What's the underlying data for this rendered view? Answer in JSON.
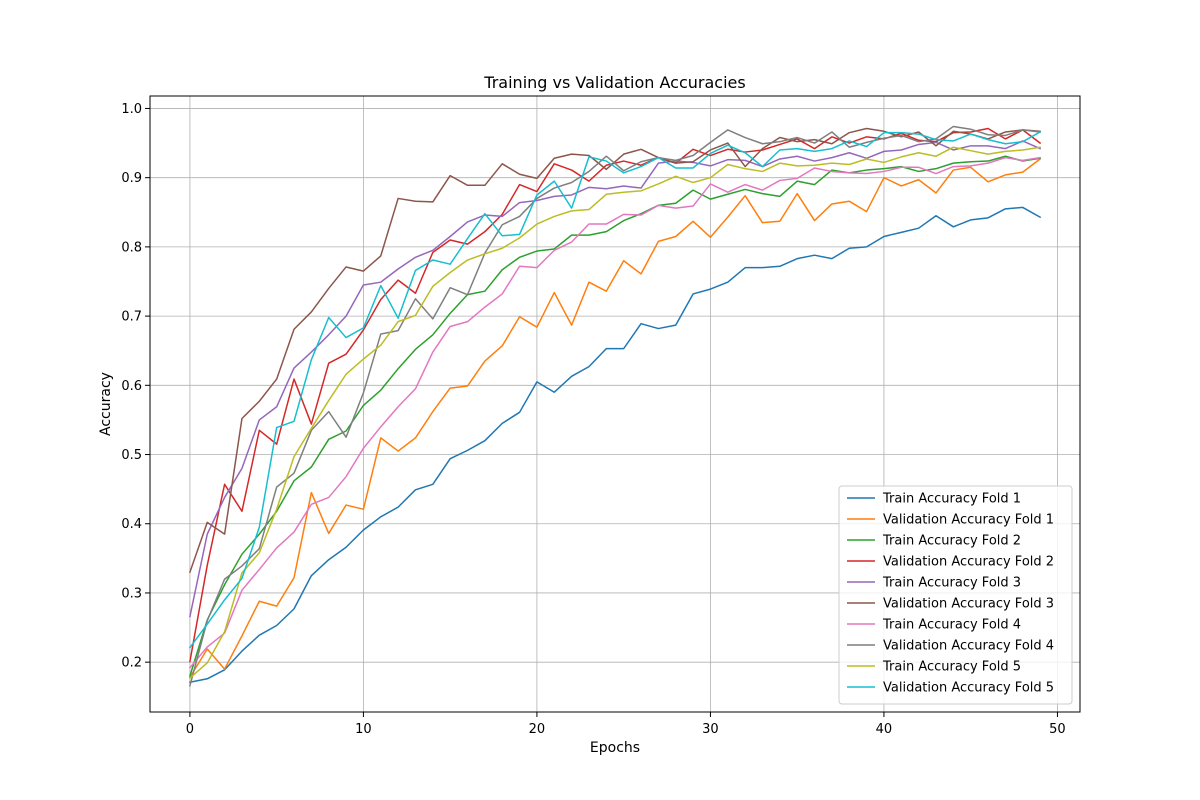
{
  "chart_data": {
    "type": "line",
    "title": "Training vs Validation Accuracies",
    "xlabel": "Epochs",
    "ylabel": "Accuracy",
    "xlim": [
      -2.3,
      51.3
    ],
    "ylim": [
      0.128,
      1.018
    ],
    "xticks": [
      0,
      10,
      20,
      30,
      40,
      50
    ],
    "yticks": [
      0.2,
      0.3,
      0.4,
      0.5,
      0.6,
      0.7,
      0.8,
      0.9,
      1.0
    ],
    "grid": true,
    "legend_position": "lower-right",
    "x": [
      0,
      1,
      2,
      3,
      4,
      5,
      6,
      7,
      8,
      9,
      10,
      11,
      12,
      13,
      14,
      15,
      16,
      17,
      18,
      19,
      20,
      21,
      22,
      23,
      24,
      25,
      26,
      27,
      28,
      29,
      30,
      31,
      32,
      33,
      34,
      35,
      36,
      37,
      38,
      39,
      40,
      41,
      42,
      43,
      44,
      45,
      46,
      47,
      48,
      49
    ],
    "series": [
      {
        "name": "Train Accuracy Fold 1",
        "color": "#1f77b4",
        "values": [
          0.171,
          0.176,
          0.189,
          0.216,
          0.239,
          0.253,
          0.277,
          0.325,
          0.348,
          0.366,
          0.391,
          0.41,
          0.424,
          0.449,
          0.457,
          0.494,
          0.506,
          0.52,
          0.545,
          0.561,
          0.605,
          0.59,
          0.613,
          0.627,
          0.653,
          0.653,
          0.689,
          0.682,
          0.687,
          0.732,
          0.739,
          0.749,
          0.77,
          0.77,
          0.772,
          0.783,
          0.788,
          0.783,
          0.798,
          0.8,
          0.815,
          0.821,
          0.827,
          0.845,
          0.829,
          0.839,
          0.842,
          0.855,
          0.857,
          0.843
        ]
      },
      {
        "name": "Validation Accuracy Fold 1",
        "color": "#ff7f0e",
        "values": [
          0.178,
          0.219,
          0.19,
          0.238,
          0.288,
          0.281,
          0.322,
          0.445,
          0.386,
          0.427,
          0.421,
          0.524,
          0.505,
          0.524,
          0.562,
          0.596,
          0.599,
          0.635,
          0.657,
          0.699,
          0.684,
          0.734,
          0.687,
          0.749,
          0.736,
          0.78,
          0.761,
          0.808,
          0.815,
          0.837,
          0.814,
          0.843,
          0.874,
          0.835,
          0.837,
          0.877,
          0.838,
          0.862,
          0.866,
          0.851,
          0.9,
          0.888,
          0.897,
          0.878,
          0.911,
          0.915,
          0.894,
          0.904,
          0.908,
          0.927
        ]
      },
      {
        "name": "Train Accuracy Fold 2",
        "color": "#2ca02c",
        "values": [
          0.18,
          0.261,
          0.312,
          0.356,
          0.385,
          0.418,
          0.462,
          0.482,
          0.522,
          0.534,
          0.571,
          0.593,
          0.624,
          0.652,
          0.673,
          0.704,
          0.731,
          0.736,
          0.767,
          0.785,
          0.794,
          0.797,
          0.817,
          0.817,
          0.822,
          0.838,
          0.848,
          0.86,
          0.863,
          0.882,
          0.869,
          0.876,
          0.883,
          0.877,
          0.873,
          0.895,
          0.89,
          0.911,
          0.907,
          0.911,
          0.913,
          0.916,
          0.909,
          0.913,
          0.921,
          0.923,
          0.924,
          0.931,
          0.924,
          0.928
        ]
      },
      {
        "name": "Validation Accuracy Fold 2",
        "color": "#d62728",
        "values": [
          0.201,
          0.34,
          0.457,
          0.418,
          0.535,
          0.515,
          0.609,
          0.544,
          0.632,
          0.645,
          0.68,
          0.724,
          0.752,
          0.733,
          0.792,
          0.81,
          0.804,
          0.822,
          0.847,
          0.89,
          0.88,
          0.92,
          0.911,
          0.895,
          0.918,
          0.924,
          0.918,
          0.929,
          0.921,
          0.941,
          0.932,
          0.941,
          0.937,
          0.94,
          0.948,
          0.956,
          0.942,
          0.959,
          0.95,
          0.959,
          0.956,
          0.964,
          0.954,
          0.952,
          0.965,
          0.966,
          0.971,
          0.956,
          0.969,
          0.95
        ]
      },
      {
        "name": "Train Accuracy Fold 3",
        "color": "#9467bd",
        "values": [
          0.266,
          0.385,
          0.438,
          0.48,
          0.55,
          0.569,
          0.625,
          0.648,
          0.673,
          0.7,
          0.745,
          0.749,
          0.768,
          0.785,
          0.795,
          0.815,
          0.836,
          0.846,
          0.844,
          0.864,
          0.867,
          0.873,
          0.875,
          0.886,
          0.884,
          0.888,
          0.885,
          0.921,
          0.924,
          0.922,
          0.917,
          0.926,
          0.925,
          0.916,
          0.927,
          0.931,
          0.924,
          0.929,
          0.936,
          0.928,
          0.938,
          0.94,
          0.948,
          0.951,
          0.94,
          0.946,
          0.946,
          0.942,
          0.953,
          0.942
        ]
      },
      {
        "name": "Validation Accuracy Fold 3",
        "color": "#8c564b",
        "values": [
          0.33,
          0.402,
          0.385,
          0.552,
          0.577,
          0.609,
          0.681,
          0.706,
          0.74,
          0.771,
          0.765,
          0.787,
          0.87,
          0.866,
          0.865,
          0.903,
          0.889,
          0.889,
          0.92,
          0.905,
          0.899,
          0.928,
          0.934,
          0.932,
          0.912,
          0.934,
          0.941,
          0.929,
          0.921,
          0.923,
          0.94,
          0.95,
          0.916,
          0.942,
          0.958,
          0.952,
          0.955,
          0.949,
          0.965,
          0.971,
          0.967,
          0.959,
          0.966,
          0.946,
          0.967,
          0.963,
          0.956,
          0.966,
          0.969,
          0.967
        ]
      },
      {
        "name": "Train Accuracy Fold 4",
        "color": "#e377c2",
        "values": [
          0.192,
          0.222,
          0.242,
          0.304,
          0.334,
          0.365,
          0.388,
          0.428,
          0.438,
          0.468,
          0.509,
          0.54,
          0.569,
          0.595,
          0.648,
          0.685,
          0.692,
          0.713,
          0.732,
          0.772,
          0.77,
          0.795,
          0.807,
          0.833,
          0.833,
          0.847,
          0.846,
          0.86,
          0.856,
          0.859,
          0.891,
          0.879,
          0.89,
          0.882,
          0.896,
          0.899,
          0.914,
          0.909,
          0.907,
          0.906,
          0.909,
          0.915,
          0.915,
          0.906,
          0.916,
          0.917,
          0.921,
          0.929,
          0.925,
          0.929
        ]
      },
      {
        "name": "Validation Accuracy Fold 4",
        "color": "#7f7f7f",
        "values": [
          0.166,
          0.26,
          0.32,
          0.339,
          0.364,
          0.453,
          0.473,
          0.535,
          0.562,
          0.525,
          0.589,
          0.674,
          0.679,
          0.725,
          0.696,
          0.741,
          0.731,
          0.791,
          0.832,
          0.844,
          0.87,
          0.885,
          0.893,
          0.909,
          0.931,
          0.91,
          0.923,
          0.929,
          0.925,
          0.932,
          0.951,
          0.969,
          0.958,
          0.949,
          0.952,
          0.958,
          0.95,
          0.966,
          0.944,
          0.951,
          0.957,
          0.961,
          0.952,
          0.956,
          0.974,
          0.97,
          0.962,
          0.961,
          0.969,
          0.966
        ]
      },
      {
        "name": "Train Accuracy Fold 5",
        "color": "#bcbd22",
        "values": [
          0.177,
          0.199,
          0.244,
          0.329,
          0.358,
          0.421,
          0.497,
          0.538,
          0.578,
          0.616,
          0.638,
          0.658,
          0.692,
          0.701,
          0.743,
          0.763,
          0.781,
          0.79,
          0.798,
          0.813,
          0.833,
          0.844,
          0.852,
          0.854,
          0.876,
          0.879,
          0.881,
          0.891,
          0.902,
          0.893,
          0.9,
          0.919,
          0.913,
          0.909,
          0.921,
          0.917,
          0.918,
          0.921,
          0.919,
          0.927,
          0.922,
          0.93,
          0.936,
          0.931,
          0.944,
          0.939,
          0.934,
          0.938,
          0.94,
          0.944
        ]
      },
      {
        "name": "Validation Accuracy Fold 5",
        "color": "#17becf",
        "values": [
          0.221,
          0.255,
          0.29,
          0.321,
          0.395,
          0.539,
          0.548,
          0.637,
          0.698,
          0.669,
          0.683,
          0.744,
          0.697,
          0.766,
          0.781,
          0.775,
          0.812,
          0.848,
          0.816,
          0.818,
          0.875,
          0.895,
          0.856,
          0.93,
          0.924,
          0.907,
          0.916,
          0.929,
          0.914,
          0.914,
          0.935,
          0.947,
          0.936,
          0.916,
          0.94,
          0.942,
          0.938,
          0.942,
          0.953,
          0.945,
          0.965,
          0.965,
          0.963,
          0.955,
          0.953,
          0.963,
          0.955,
          0.949,
          0.952,
          0.966
        ]
      }
    ]
  }
}
